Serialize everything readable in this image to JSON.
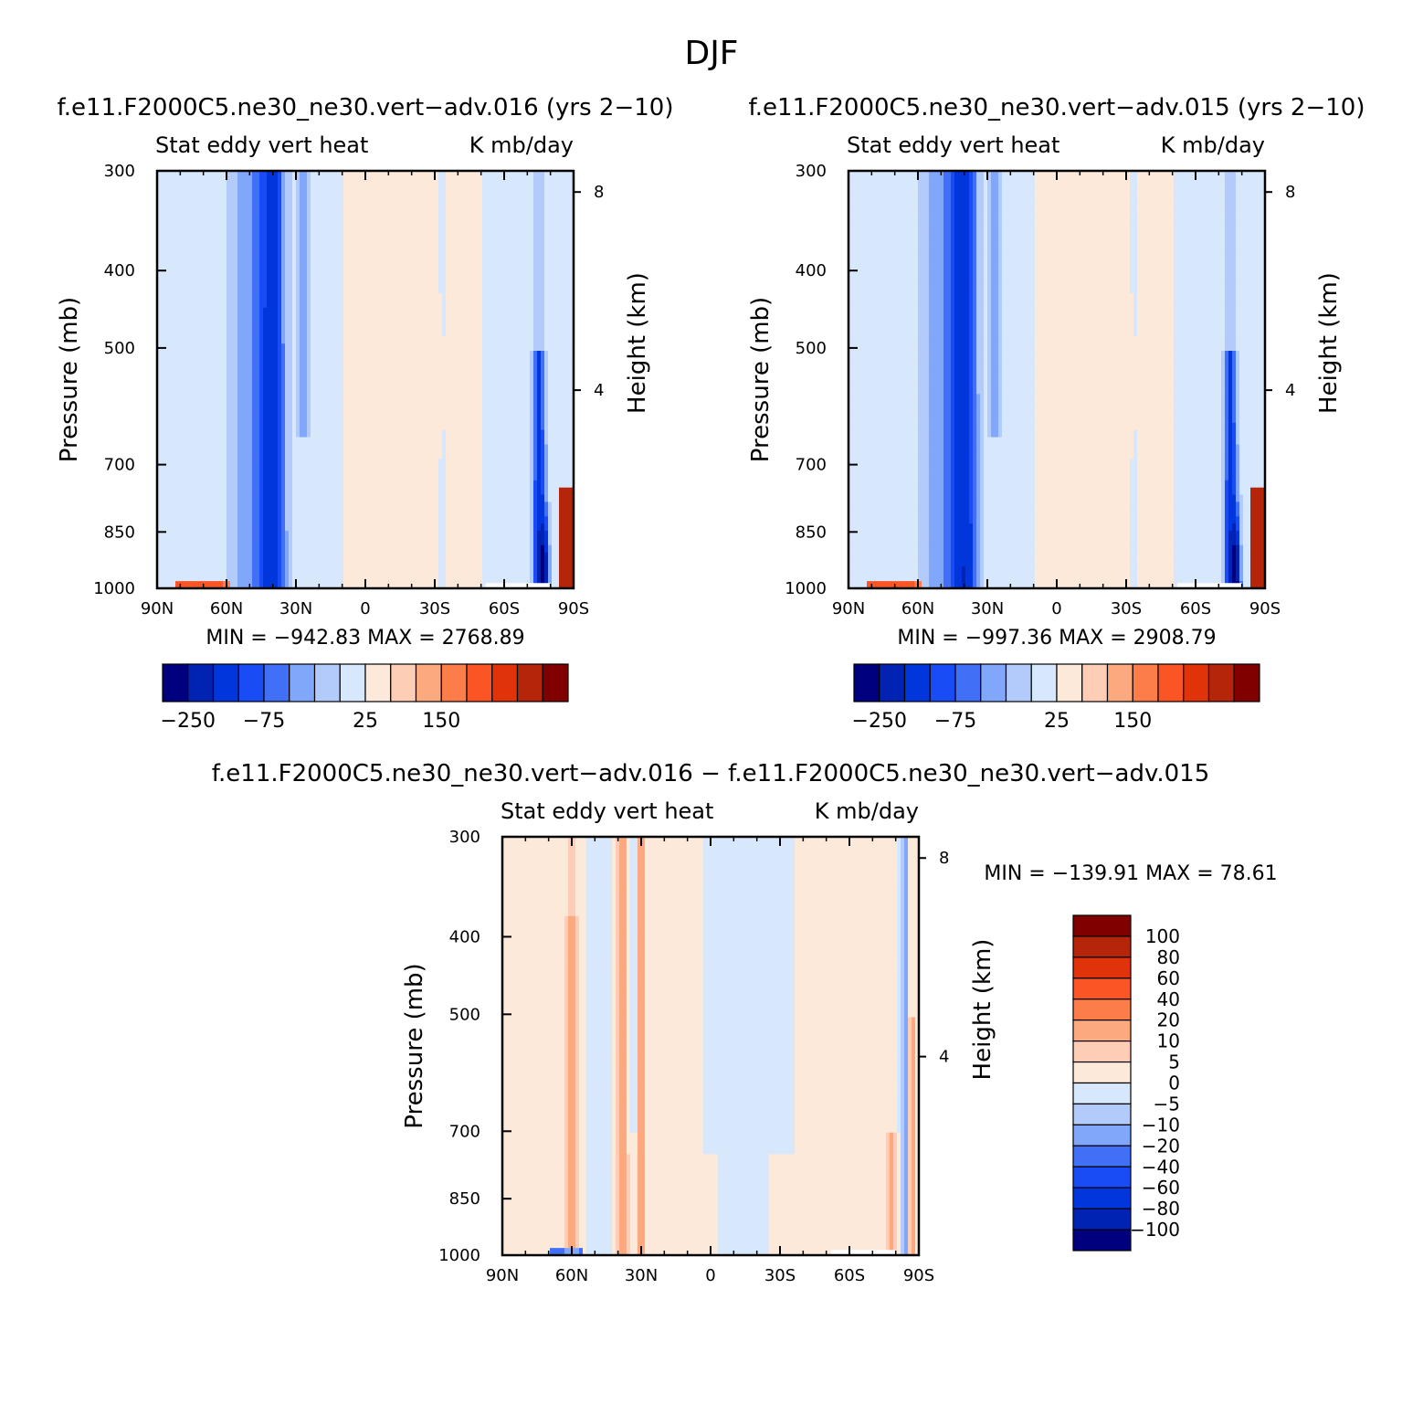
{
  "figure": {
    "title": "DJF"
  },
  "colors": {
    "abs_levels": [
      "#00007f",
      "#0023b4",
      "#0036db",
      "#1a4cf5",
      "#4170f7",
      "#80a7f9",
      "#b3cbfa",
      "#d7e7fc",
      "#fde9da",
      "#fdcdb6",
      "#fca97f",
      "#fc7c4a",
      "#fb5526",
      "#e0330a",
      "#b5250a",
      "#800000"
    ],
    "diff_levels": [
      "#00007f",
      "#0023b4",
      "#0036db",
      "#1a4cf5",
      "#4170f7",
      "#80a7f9",
      "#b3cbfa",
      "#d7e7fc",
      "#fde9da",
      "#fdcdb6",
      "#fca97f",
      "#fc7c4a",
      "#fb5526",
      "#e0330a",
      "#b5250a",
      "#800000"
    ]
  },
  "panels": [
    {
      "title": "f.e11.F2000C5.ne30_ne30.vert−adv.016 (yrs 2−10)",
      "left_label": "Stat eddy vert heat",
      "right_label": "K mb/day",
      "stats": "MIN = −942.83   MAX = 2768.89",
      "colorbar_labels": [
        "−250",
        "−75",
        "25",
        "150"
      ]
    },
    {
      "title": "f.e11.F2000C5.ne30_ne30.vert−adv.015 (yrs 2−10)",
      "left_label": "Stat eddy vert heat",
      "right_label": "K mb/day",
      "stats": "MIN = −997.36   MAX = 2908.79",
      "colorbar_labels": [
        "−250",
        "−75",
        "25",
        "150"
      ]
    },
    {
      "title": "f.e11.F2000C5.ne30_ne30.vert−adv.016 − f.e11.F2000C5.ne30_ne30.vert−adv.015",
      "left_label": "Stat eddy vert heat",
      "right_label": "K mb/day",
      "stats": "MIN = −139.91   MAX =  78.61",
      "colorbar_labels": [
        "100",
        "80",
        "60",
        "40",
        "20",
        "10",
        "5",
        "0",
        "−5",
        "−10",
        "−20",
        "−40",
        "−60",
        "−80",
        "−100"
      ]
    }
  ],
  "chart_data": [
    {
      "type": "heatmap",
      "title": "f.e11.F2000C5.ne30_ne30.vert−adv.016 (yrs 2−10)",
      "xlabel": "",
      "ylabel": "Pressure (mb)",
      "y2label": "Height (km)",
      "x_ticks": [
        "90N",
        "60N",
        "30N",
        "0",
        "30S",
        "60S",
        "90S"
      ],
      "y_ticks": [
        300,
        400,
        500,
        700,
        850,
        1000
      ],
      "y2_ticks": [
        8,
        4
      ],
      "y_scale": "log",
      "xlim": [
        90,
        -90
      ],
      "ylim": [
        1000,
        300
      ],
      "units": "K mb/day",
      "min": -942.83,
      "max": 2768.89
    },
    {
      "type": "heatmap",
      "title": "f.e11.F2000C5.ne30_ne30.vert−adv.015 (yrs 2−10)",
      "xlabel": "",
      "ylabel": "Pressure (mb)",
      "y2label": "Height (km)",
      "x_ticks": [
        "90N",
        "60N",
        "30N",
        "0",
        "30S",
        "60S",
        "90S"
      ],
      "y_ticks": [
        300,
        400,
        500,
        700,
        850,
        1000
      ],
      "y2_ticks": [
        8,
        4
      ],
      "y_scale": "log",
      "xlim": [
        90,
        -90
      ],
      "ylim": [
        1000,
        300
      ],
      "units": "K mb/day",
      "min": -997.36,
      "max": 2908.79
    },
    {
      "type": "heatmap",
      "title": "f.e11.F2000C5.ne30_ne30.vert−adv.016 − f.e11.F2000C5.ne30_ne30.vert−adv.015",
      "xlabel": "",
      "ylabel": "Pressure (mb)",
      "y2label": "Height (km)",
      "x_ticks": [
        "90N",
        "60N",
        "30N",
        "0",
        "30S",
        "60S",
        "90S"
      ],
      "y_ticks": [
        300,
        400,
        500,
        700,
        850,
        1000
      ],
      "y2_ticks": [
        8,
        4
      ],
      "y_scale": "log",
      "xlim": [
        90,
        -90
      ],
      "ylim": [
        1000,
        300
      ],
      "units": "K mb/day",
      "min": -139.91,
      "max": 78.61
    }
  ]
}
